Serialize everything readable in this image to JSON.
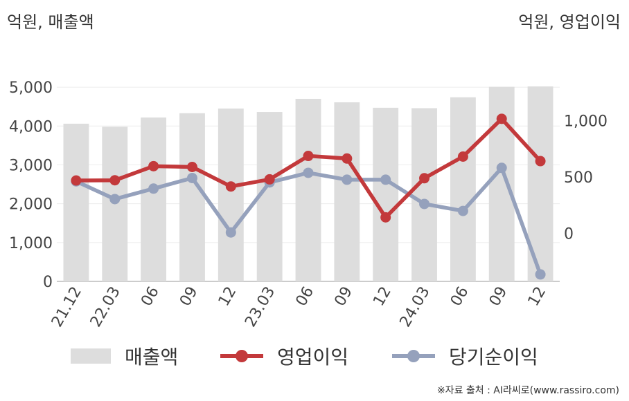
{
  "left_unit": "억원, 매출액",
  "right_unit": "억원, 영업이익",
  "source": "※자료 출처 : AI라씨로(www.rassiro.com)",
  "chart_data": {
    "type": "bar+line",
    "categories": [
      "21.12",
      "22.03",
      "06",
      "09",
      "12",
      "23.03",
      "06",
      "09",
      "12",
      "24.03",
      "06",
      "09",
      "12"
    ],
    "left_axis": {
      "ticks": [
        "0",
        "1,000",
        "2,000",
        "3,000",
        "4,000",
        "5,000"
      ],
      "range": [
        0,
        5500
      ]
    },
    "right_axis": {
      "ticks": [
        "0",
        "500",
        "1,000"
      ],
      "range": [
        -425,
        1470
      ]
    },
    "series": [
      {
        "name": "매출액",
        "kind": "bar",
        "axis": "left",
        "color": "#dddddd",
        "values": [
          4060,
          3980,
          4220,
          4330,
          4450,
          4360,
          4700,
          4610,
          4470,
          4460,
          4740,
          5010,
          5020
        ]
      },
      {
        "name": "영업이익",
        "kind": "line",
        "axis": "right",
        "color": "#c3393b",
        "values": [
          470,
          472,
          597,
          590,
          417,
          480,
          688,
          665,
          143,
          490,
          682,
          1017,
          642
        ]
      },
      {
        "name": "당기순이익",
        "kind": "line",
        "axis": "right",
        "color": "#95a1bc",
        "values": [
          462,
          305,
          398,
          492,
          9,
          453,
          538,
          477,
          477,
          262,
          200,
          582,
          -363
        ]
      }
    ],
    "grid": true,
    "legend_position": "bottom"
  }
}
